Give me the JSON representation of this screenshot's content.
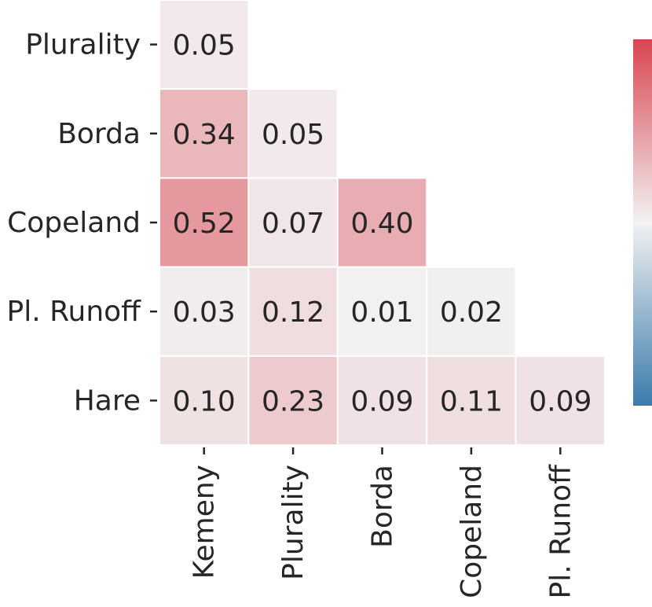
{
  "chart_data": {
    "type": "heatmap",
    "title": "",
    "xlabel": "",
    "ylabel": "",
    "x_categories": [
      "Kemeny",
      "Plurality",
      "Borda",
      "Copeland",
      "Pl. Runoff"
    ],
    "y_categories": [
      "Plurality",
      "Borda",
      "Copeland",
      "Pl. Runoff",
      "Hare"
    ],
    "rows": [
      [
        "0.05",
        null,
        null,
        null,
        null
      ],
      [
        "0.34",
        "0.05",
        null,
        null,
        null
      ],
      [
        "0.52",
        "0.07",
        "0.40",
        null,
        null
      ],
      [
        "0.03",
        "0.12",
        "0.01",
        "0.02",
        null
      ],
      [
        "0.10",
        "0.23",
        "0.09",
        "0.11",
        "0.09"
      ]
    ],
    "mask": "upper-triangle",
    "colormap": {
      "type": "diverging",
      "low_color": "#3b7bab",
      "mid_color": "#f2f2f2",
      "high_color": "#d94551",
      "vmin": -1,
      "vmax": 1
    },
    "colorbar": {
      "position": "right",
      "tick_labels": []
    },
    "grid_lines": true,
    "grid_line_color": "#ffffff"
  }
}
